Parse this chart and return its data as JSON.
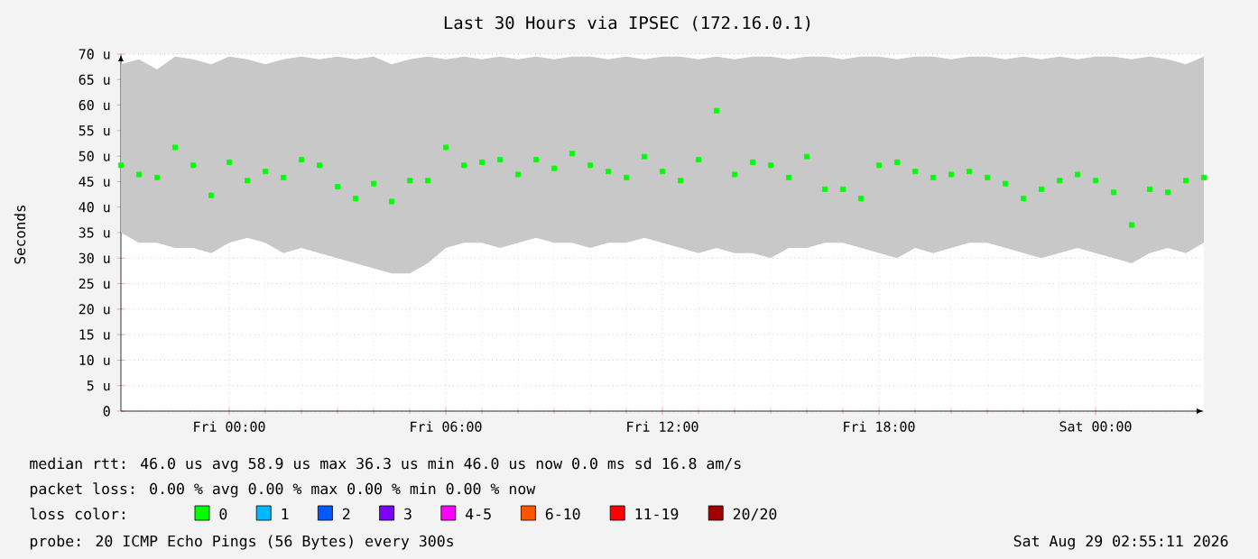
{
  "chart_data": {
    "type": "scatter",
    "title": "Last 30 Hours via IPSEC (172.16.0.1)",
    "ylabel": "Seconds",
    "x": [
      "2026-08-27T21:00",
      "2026-08-27T21:30",
      "2026-08-27T22:00",
      "2026-08-27T22:30",
      "2026-08-27T23:00",
      "2026-08-27T23:30",
      "2026-08-28T00:00",
      "2026-08-28T00:30",
      "2026-08-28T01:00",
      "2026-08-28T01:30",
      "2026-08-28T02:00",
      "2026-08-28T02:30",
      "2026-08-28T03:00",
      "2026-08-28T03:30",
      "2026-08-28T04:00",
      "2026-08-28T04:30",
      "2026-08-28T05:00",
      "2026-08-28T05:30",
      "2026-08-28T06:00",
      "2026-08-28T06:30",
      "2026-08-28T07:00",
      "2026-08-28T07:30",
      "2026-08-28T08:00",
      "2026-08-28T08:30",
      "2026-08-28T09:00",
      "2026-08-28T09:30",
      "2026-08-28T10:00",
      "2026-08-28T10:30",
      "2026-08-28T11:00",
      "2026-08-28T11:30",
      "2026-08-28T12:00",
      "2026-08-28T12:30",
      "2026-08-28T13:00",
      "2026-08-28T13:30",
      "2026-08-28T14:00",
      "2026-08-28T14:30",
      "2026-08-28T15:00",
      "2026-08-28T15:30",
      "2026-08-28T16:00",
      "2026-08-28T16:30",
      "2026-08-28T17:00",
      "2026-08-28T17:30",
      "2026-08-28T18:00",
      "2026-08-28T18:30",
      "2026-08-28T19:00",
      "2026-08-28T19:30",
      "2026-08-28T20:00",
      "2026-08-28T20:30",
      "2026-08-28T21:00",
      "2026-08-28T21:30",
      "2026-08-28T22:00",
      "2026-08-28T22:30",
      "2026-08-28T23:00",
      "2026-08-28T23:30",
      "2026-08-29T00:00",
      "2026-08-29T00:30",
      "2026-08-29T01:00",
      "2026-08-29T01:30",
      "2026-08-29T02:00",
      "2026-08-29T02:30",
      "2026-08-29T03:00"
    ],
    "series": [
      {
        "name": "0",
        "color": "#00ff00",
        "values": [
          48.2,
          46.4,
          45.8,
          51.7,
          48.2,
          42.3,
          48.8,
          45.2,
          47.0,
          45.8,
          49.3,
          48.2,
          44.0,
          41.7,
          44.6,
          41.1,
          45.2,
          45.2,
          51.7,
          48.2,
          48.8,
          49.3,
          46.4,
          49.3,
          47.6,
          50.5,
          48.2,
          47.0,
          45.8,
          49.9,
          47.0,
          45.2,
          49.3,
          58.9,
          46.4,
          48.8,
          48.2,
          45.8,
          49.9,
          43.5,
          43.5,
          41.7,
          48.2,
          48.8,
          47.0,
          45.8,
          46.4,
          47.0,
          45.8,
          44.6,
          41.7,
          43.5,
          45.2,
          46.4,
          45.2,
          42.9,
          36.5,
          43.5,
          42.9,
          45.2,
          45.8
        ],
        "lower": [
          35,
          33,
          33,
          32,
          32,
          31,
          33,
          34,
          33,
          31,
          32,
          31,
          30,
          29,
          28,
          27,
          27,
          29,
          32,
          33,
          33,
          32,
          33,
          34,
          33,
          33,
          32,
          33,
          33,
          34,
          33,
          32,
          31,
          32,
          31,
          31,
          30,
          32,
          32,
          33,
          33,
          32,
          31,
          30,
          32,
          31,
          32,
          33,
          33,
          32,
          31,
          30,
          31,
          32,
          31,
          30,
          29,
          31,
          32,
          31,
          33
        ],
        "upper": [
          68,
          69,
          67,
          69.5,
          69,
          68,
          69.5,
          69,
          68,
          69,
          69.5,
          69,
          69.5,
          69,
          69.5,
          68,
          69,
          69.5,
          69,
          69.5,
          69,
          69.5,
          69,
          69.5,
          69,
          69.5,
          69.5,
          69,
          69.5,
          69,
          69.5,
          69.5,
          69,
          69.5,
          69,
          69.5,
          69.5,
          69,
          69.5,
          69.5,
          69,
          69.5,
          69.5,
          69,
          69.5,
          69.5,
          69,
          69.5,
          69.5,
          69,
          69.5,
          69,
          69.5,
          69,
          69.5,
          69.5,
          69,
          69.5,
          69,
          68,
          69.5
        ]
      },
      {
        "name": "1",
        "color": "#00b8ff",
        "values": [
          null,
          null,
          null,
          null,
          null,
          null,
          null,
          null,
          null,
          null,
          null,
          null,
          null,
          null,
          null,
          null,
          null,
          null,
          null,
          null,
          null,
          null,
          null,
          null,
          null,
          null,
          null,
          null,
          null,
          null,
          null,
          null,
          null,
          null,
          null,
          null,
          null,
          null,
          null,
          null,
          null,
          null,
          null,
          null,
          null,
          null,
          null,
          null,
          null,
          null,
          null,
          null,
          null,
          null,
          null,
          null,
          null,
          null,
          null,
          null,
          null
        ]
      },
      {
        "name": "2",
        "color": "#0059ff",
        "values": [
          null,
          null,
          null,
          null,
          null,
          null,
          null,
          null,
          null,
          null,
          null,
          null,
          null,
          null,
          null,
          null,
          null,
          null,
          null,
          null,
          null,
          null,
          null,
          null,
          null,
          null,
          null,
          null,
          null,
          null,
          null,
          null,
          null,
          null,
          null,
          null,
          null,
          null,
          null,
          null,
          null,
          null,
          null,
          null,
          null,
          null,
          null,
          null,
          null,
          null,
          null,
          null,
          null,
          null,
          null,
          null,
          null,
          null,
          null,
          null,
          null
        ]
      },
      {
        "name": "3",
        "color": "#7e00ff",
        "values": [
          null,
          null,
          null,
          null,
          null,
          null,
          null,
          null,
          null,
          null,
          null,
          null,
          null,
          null,
          null,
          null,
          null,
          null,
          null,
          null,
          null,
          null,
          null,
          null,
          null,
          null,
          null,
          null,
          null,
          null,
          null,
          null,
          null,
          null,
          null,
          null,
          null,
          null,
          null,
          null,
          null,
          null,
          null,
          null,
          null,
          null,
          null,
          null,
          null,
          null,
          null,
          null,
          null,
          null,
          null,
          null,
          null,
          null,
          null,
          null,
          null
        ]
      },
      {
        "name": "4-5",
        "color": "#ff00ff",
        "values": [
          null,
          null,
          null,
          null,
          null,
          null,
          null,
          null,
          null,
          null,
          null,
          null,
          null,
          null,
          null,
          null,
          null,
          null,
          null,
          null,
          null,
          null,
          null,
          null,
          null,
          null,
          null,
          null,
          null,
          null,
          null,
          null,
          null,
          null,
          null,
          null,
          null,
          null,
          null,
          null,
          null,
          null,
          null,
          null,
          null,
          null,
          null,
          null,
          null,
          null,
          null,
          null,
          null,
          null,
          null,
          null,
          null,
          null,
          null,
          null,
          null
        ]
      },
      {
        "name": "6-10",
        "color": "#ff5500",
        "values": [
          null,
          null,
          null,
          null,
          null,
          null,
          null,
          null,
          null,
          null,
          null,
          null,
          null,
          null,
          null,
          null,
          null,
          null,
          null,
          null,
          null,
          null,
          null,
          null,
          null,
          null,
          null,
          null,
          null,
          null,
          null,
          null,
          null,
          null,
          null,
          null,
          null,
          null,
          null,
          null,
          null,
          null,
          null,
          null,
          null,
          null,
          null,
          null,
          null,
          null,
          null,
          null,
          null,
          null,
          null,
          null,
          null,
          null,
          null,
          null,
          null
        ]
      },
      {
        "name": "11-19",
        "color": "#ff0000",
        "values": [
          null,
          null,
          null,
          null,
          null,
          null,
          null,
          null,
          null,
          null,
          null,
          null,
          null,
          null,
          null,
          null,
          null,
          null,
          null,
          null,
          null,
          null,
          null,
          null,
          null,
          null,
          null,
          null,
          null,
          null,
          null,
          null,
          null,
          null,
          null,
          null,
          null,
          null,
          null,
          null,
          null,
          null,
          null,
          null,
          null,
          null,
          null,
          null,
          null,
          null,
          null,
          null,
          null,
          null,
          null,
          null,
          null,
          null,
          null,
          null,
          null
        ]
      },
      {
        "name": "20/20",
        "color": "#a10000",
        "values": [
          null,
          null,
          null,
          null,
          null,
          null,
          null,
          null,
          null,
          null,
          null,
          null,
          null,
          null,
          null,
          null,
          null,
          null,
          null,
          null,
          null,
          null,
          null,
          null,
          null,
          null,
          null,
          null,
          null,
          null,
          null,
          null,
          null,
          null,
          null,
          null,
          null,
          null,
          null,
          null,
          null,
          null,
          null,
          null,
          null,
          null,
          null,
          null,
          null,
          null,
          null,
          null,
          null,
          null,
          null,
          null,
          null,
          null,
          null,
          null,
          null
        ]
      }
    ],
    "xlim": [
      "2026-08-27T21:00",
      "2026-08-29T03:00"
    ],
    "xticks": [
      {
        "value": "2026-08-28T00:00",
        "label": "Fri 00:00"
      },
      {
        "value": "2026-08-28T06:00",
        "label": "Fri 06:00"
      },
      {
        "value": "2026-08-28T12:00",
        "label": "Fri 12:00"
      },
      {
        "value": "2026-08-28T18:00",
        "label": "Fri 18:00"
      },
      {
        "value": "2026-08-29T00:00",
        "label": "Sat 00:00"
      }
    ],
    "ylim": [
      0,
      70
    ],
    "yticks": [
      0,
      {
        "value": 5,
        "label": "5 u"
      },
      {
        "value": 10,
        "label": "10 u"
      },
      {
        "value": 15,
        "label": "15 u"
      },
      {
        "value": 20,
        "label": "20 u"
      },
      {
        "value": 25,
        "label": "25 u"
      },
      {
        "value": 30,
        "label": "30 u"
      },
      {
        "value": 35,
        "label": "35 u"
      },
      {
        "value": 40,
        "label": "40 u"
      },
      {
        "value": 45,
        "label": "45 u"
      },
      {
        "value": 50,
        "label": "50 u"
      },
      {
        "value": 55,
        "label": "55 u"
      },
      {
        "value": 60,
        "label": "60 u"
      },
      {
        "value": 65,
        "label": "65 u"
      },
      {
        "value": 70,
        "label": "70 u"
      }
    ],
    "grid": true,
    "marker": "square",
    "legend": "bottom",
    "legend_title": "loss color:",
    "annotations": [
      "median rtt:  46.0 us avg  58.9 us max  36.3 us min  46.0 us now  0.0 ms sd  16.8   am/s",
      "packet loss: 0.00 % avg  0.00 % max  0.00 % min  0.00 % now",
      "probe:       20 ICMP Echo Pings (56 Bytes) every 300s",
      "Sat Aug 29 02:55:11 2026"
    ]
  }
}
